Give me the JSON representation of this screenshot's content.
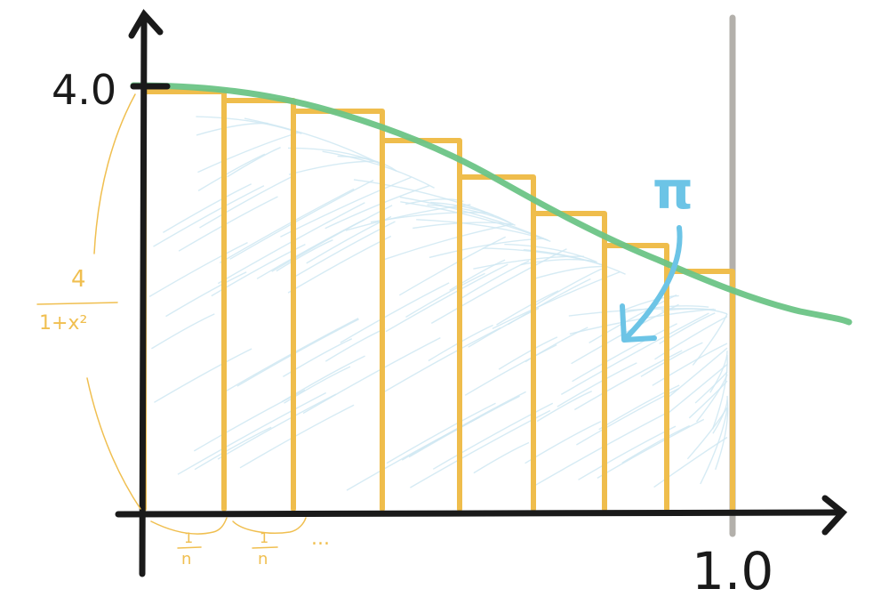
{
  "labels": {
    "y_max": "4.0",
    "x_max": "1.0",
    "pi": "π",
    "func_numerator": "4",
    "func_denominator": "1+x²",
    "step_numerator": "1",
    "step_denominator": "n",
    "ellipsis": "..."
  },
  "colors": {
    "axis": "#1a1a1a",
    "bars": "#efbd4c",
    "curve": "#6cc486",
    "shade": "#cfe8f2",
    "pi": "#6cc4e6",
    "limit_line": "#b3b0ab",
    "annotation": "#f0bf50"
  }
}
